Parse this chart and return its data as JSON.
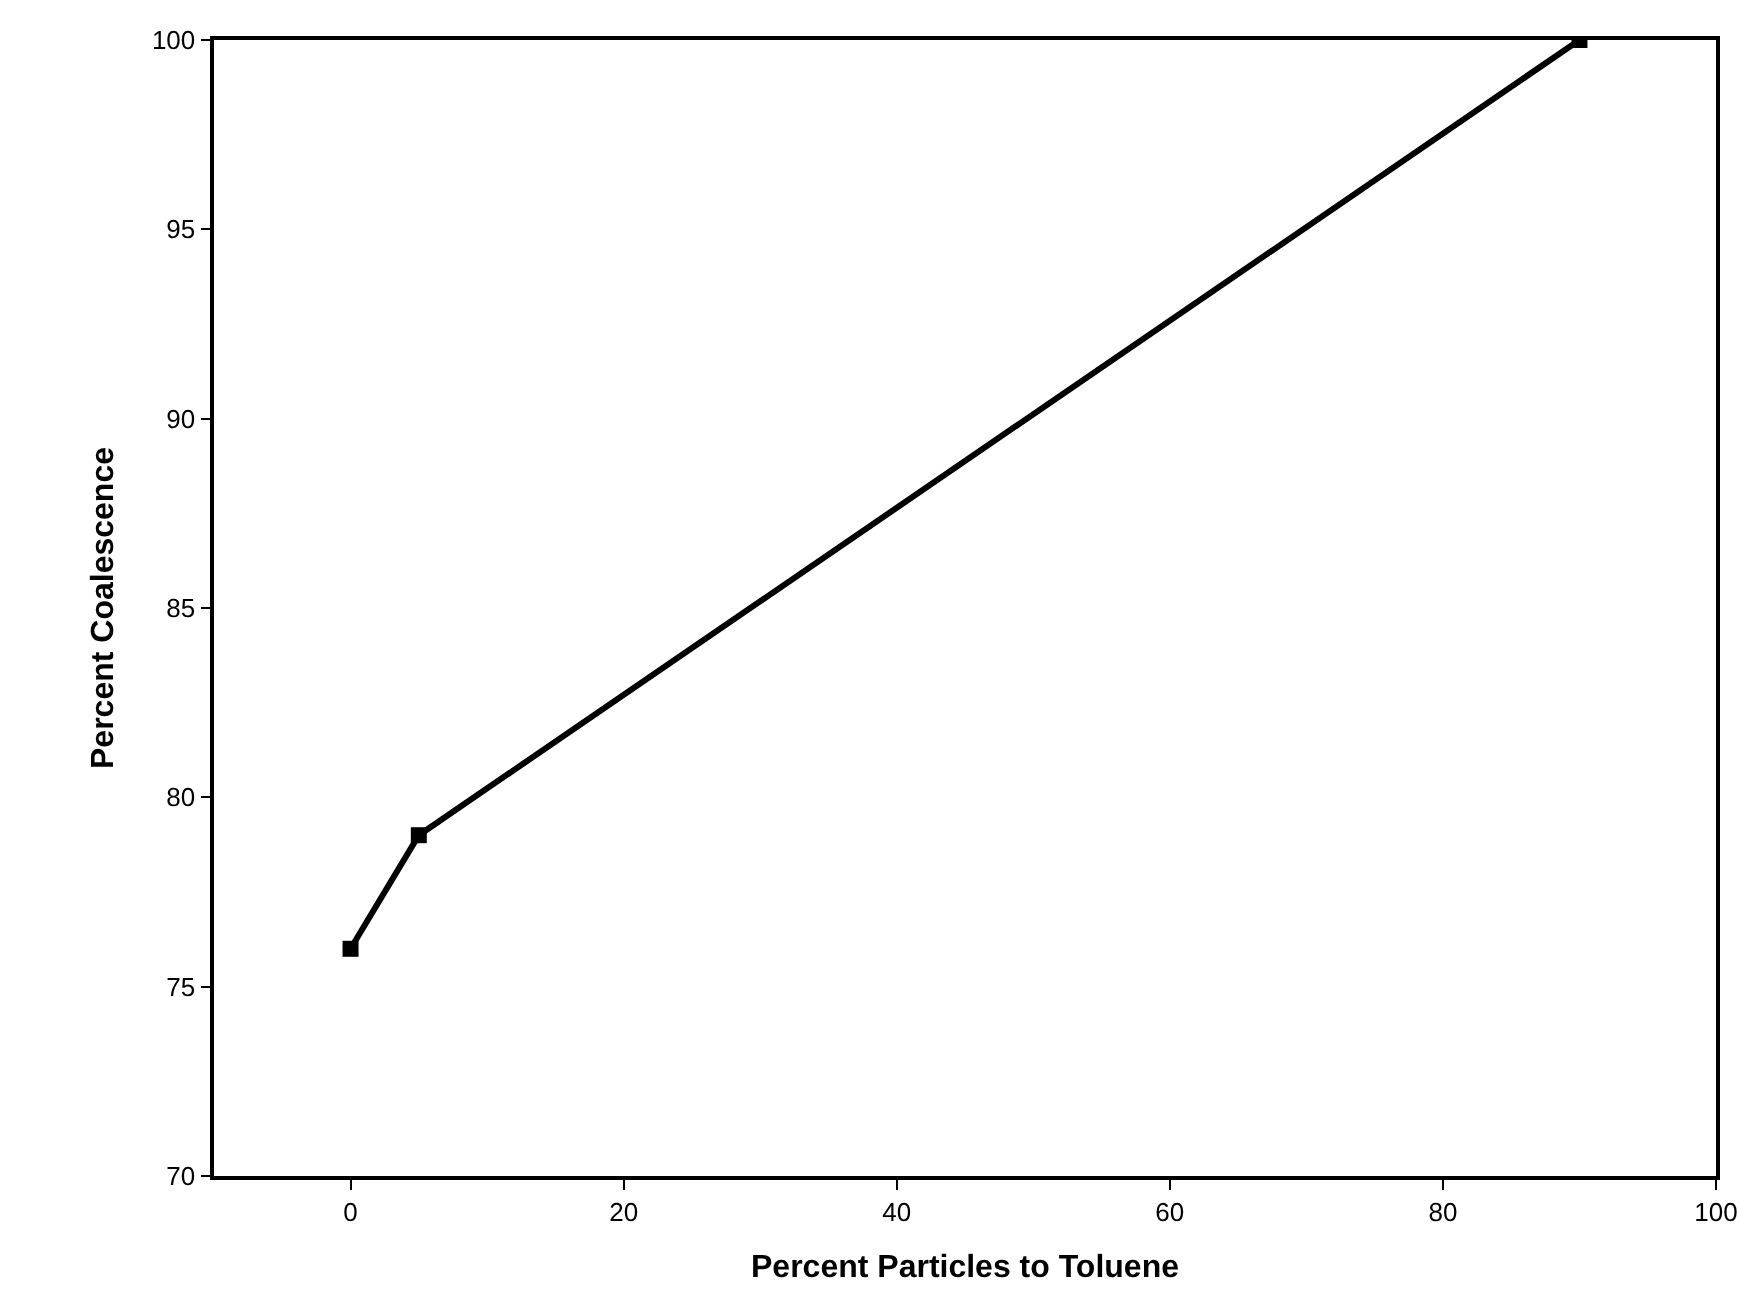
{
  "chart_data": {
    "type": "line",
    "xlabel": "Percent Particles to Toluene",
    "ylabel": "Percent Coalescence",
    "x": [
      0,
      5,
      90
    ],
    "series": [
      {
        "color": "#000000",
        "values": [
          76,
          79,
          100
        ]
      }
    ],
    "xlim": [
      -10,
      100
    ],
    "xticks": [
      0,
      20,
      40,
      60,
      80,
      100
    ],
    "ylim": [
      70,
      100
    ],
    "yticks": [
      70,
      75,
      80,
      85,
      90,
      95,
      100
    ],
    "marker": "square",
    "line_style": "solid"
  }
}
